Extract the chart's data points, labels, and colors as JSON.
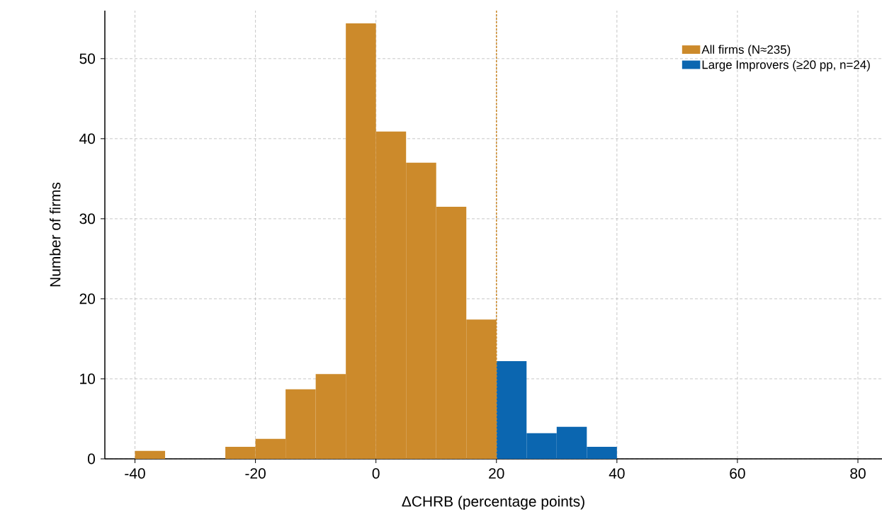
{
  "chart_data": {
    "type": "histogram",
    "xlabel": "ΔCHRB (percentage points)",
    "ylabel": "Number of firms",
    "bins": [
      -40,
      -35,
      -30,
      -25,
      -20,
      -15,
      -10,
      -5,
      0,
      5,
      10,
      15,
      20,
      25,
      30,
      35,
      40
    ],
    "series": [
      {
        "name": "All firms (N≈235)",
        "color": "#cc8a2b",
        "values": [
          1,
          0,
          0,
          1.5,
          2.5,
          8.7,
          10.6,
          54.4,
          40.9,
          37,
          31.5,
          17.4,
          null,
          null,
          null,
          null
        ]
      },
      {
        "name": "Large Improvers (≥20 pp, n=24)",
        "color": "#0b66b0",
        "values": [
          null,
          null,
          null,
          null,
          null,
          null,
          null,
          null,
          null,
          null,
          null,
          null,
          12.2,
          3.2,
          4,
          1.5
        ]
      }
    ],
    "xlim": [
      -45,
      84
    ],
    "ylim": [
      0,
      56
    ],
    "xticks": [
      -40,
      -20,
      0,
      20,
      40,
      60,
      80
    ],
    "yticks": [
      0,
      10,
      20,
      30,
      40,
      50
    ],
    "ref_lines": [
      {
        "axis": "x",
        "value": 20,
        "color": "#cc8a2b",
        "line_style": "dashed"
      }
    ],
    "grid": true,
    "legend": "top right"
  }
}
